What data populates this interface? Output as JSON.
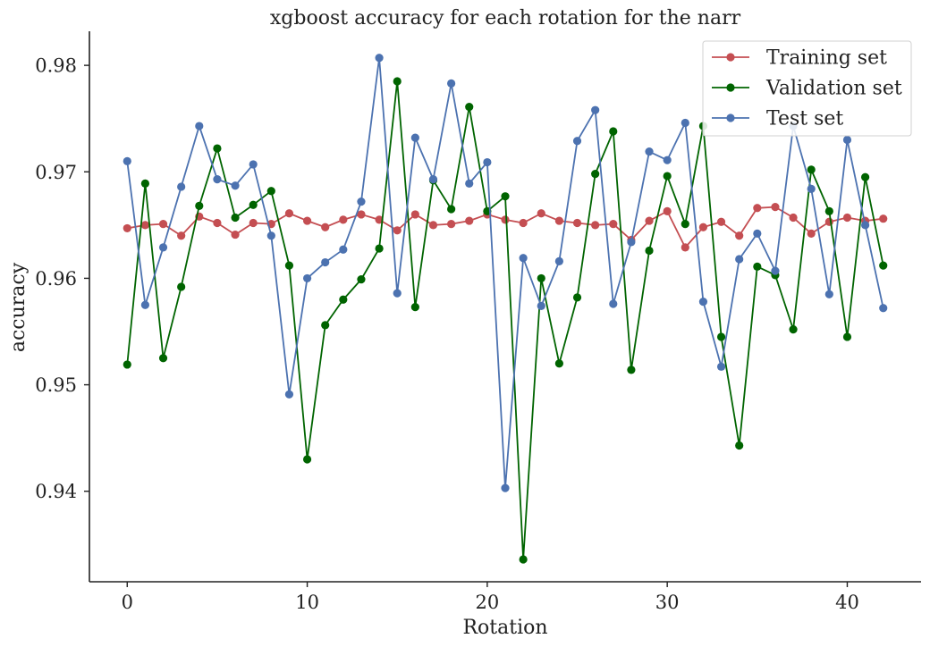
{
  "chart_data": {
    "type": "line",
    "title": "xgboost accuracy for each rotation for the narr",
    "xlabel": "Rotation",
    "ylabel": "accuracy",
    "xlim": [
      -2.1,
      44.1
    ],
    "ylim": [
      0.9315,
      0.9832
    ],
    "xticks": [
      0,
      10,
      20,
      30,
      40
    ],
    "yticks": [
      0.94,
      0.95,
      0.96,
      0.97,
      0.98
    ],
    "xtick_labels": [
      "0",
      "10",
      "20",
      "30",
      "40"
    ],
    "ytick_labels": [
      "0.94",
      "0.95",
      "0.96",
      "0.97",
      "0.98"
    ],
    "grid": false,
    "legend_position": "top-right",
    "x": [
      0,
      1,
      2,
      3,
      4,
      5,
      6,
      7,
      8,
      9,
      10,
      11,
      12,
      13,
      14,
      15,
      16,
      17,
      18,
      19,
      20,
      21,
      22,
      23,
      24,
      25,
      26,
      27,
      28,
      29,
      30,
      31,
      32,
      33,
      34,
      35,
      36,
      37,
      38,
      39,
      40,
      41,
      42
    ],
    "series": [
      {
        "name": "Training set",
        "color": "#c44e52",
        "values": [
          0.9647,
          0.965,
          0.9651,
          0.964,
          0.9658,
          0.9652,
          0.9641,
          0.9652,
          0.9651,
          0.9661,
          0.9654,
          0.9648,
          0.9655,
          0.966,
          0.9655,
          0.9645,
          0.966,
          0.965,
          0.9651,
          0.9654,
          0.966,
          0.9655,
          0.9652,
          0.9661,
          0.9654,
          0.9652,
          0.965,
          0.9651,
          0.9636,
          0.9654,
          0.9663,
          0.9629,
          0.9648,
          0.9653,
          0.964,
          0.9666,
          0.9667,
          0.9657,
          0.9642,
          0.9653,
          0.9657,
          0.9654,
          0.9656
        ]
      },
      {
        "name": "Validation set",
        "color": "#006400",
        "values": [
          0.9519,
          0.9689,
          0.9525,
          0.9592,
          0.9668,
          0.9722,
          0.9657,
          0.9669,
          0.9682,
          0.9612,
          0.943,
          0.9556,
          0.958,
          0.9599,
          0.9628,
          0.9785,
          0.9573,
          0.9692,
          0.9665,
          0.9761,
          0.9663,
          0.9677,
          0.9336,
          0.96,
          0.952,
          0.9582,
          0.9698,
          0.9738,
          0.9514,
          0.9626,
          0.9696,
          0.9651,
          0.9743,
          0.9545,
          0.9443,
          0.9611,
          0.9603,
          0.9552,
          0.9702,
          0.9663,
          0.9545,
          0.9695,
          0.9612
        ]
      },
      {
        "name": "Test set",
        "color": "#4c72b0",
        "values": [
          0.971,
          0.9575,
          0.9629,
          0.9686,
          0.9743,
          0.9693,
          0.9687,
          0.9707,
          0.964,
          0.9491,
          0.96,
          0.9615,
          0.9627,
          0.9672,
          0.9807,
          0.9586,
          0.9732,
          0.9693,
          0.9783,
          0.9689,
          0.9709,
          0.9403,
          0.9619,
          0.9574,
          0.9616,
          0.9729,
          0.9758,
          0.9576,
          0.9634,
          0.9719,
          0.9711,
          0.9746,
          0.9578,
          0.9517,
          0.9618,
          0.9642,
          0.9607,
          0.9743,
          0.9684,
          0.9585,
          0.973,
          0.965,
          0.9572
        ]
      }
    ]
  }
}
